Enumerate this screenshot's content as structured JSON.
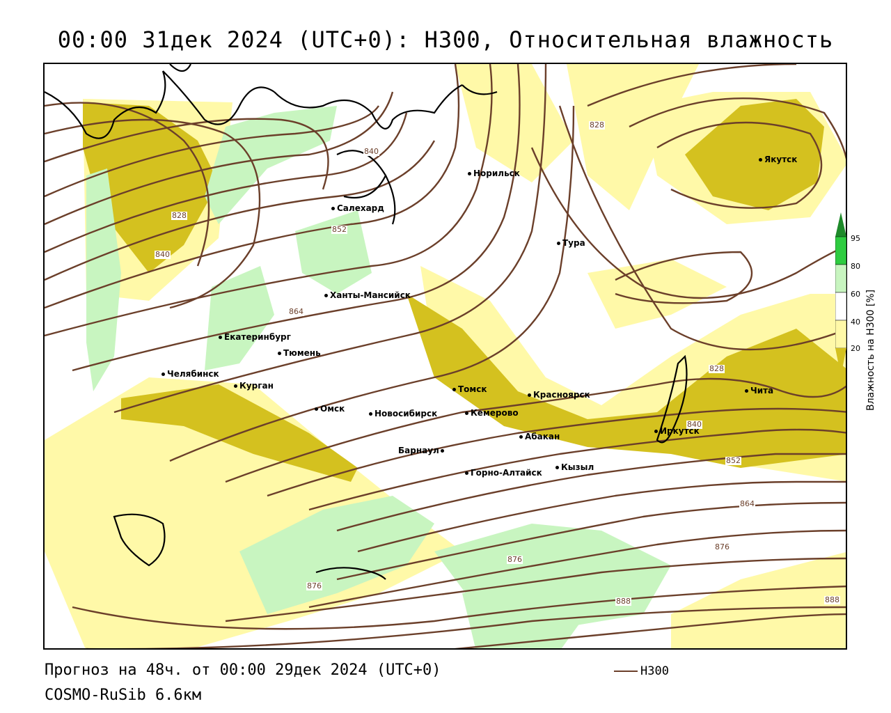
{
  "title": "00:00 31дек 2024 (UTC+0): H300, Относительная влажность",
  "footer": {
    "forecast": "Прогноз на 48ч. от 00:00 29дек 2024 (UTC+0)",
    "model": "COSMO-RuSib 6.6км",
    "legend_label": "H300"
  },
  "colorbar": {
    "label": "Влажность на H300 [%]",
    "ticks": [
      "95",
      "80",
      "60",
      "40",
      "20"
    ],
    "colors": {
      "lt20": "#d4c11f",
      "20_40": "#fff9a8",
      "40_60": "#ffffff",
      "60_80": "#c8f5c0",
      "80_95": "#2ecc40",
      "gt95": "#1e8a2a"
    }
  },
  "colors": {
    "contour": "#6b3f2a",
    "coast": "#000000",
    "dry_strong": "#d4c11f",
    "dry_light": "#fff9a8",
    "moist": "#c8f5c0"
  },
  "cities": [
    {
      "name": "Салехард"
    },
    {
      "name": "Норильск"
    },
    {
      "name": "Якутск"
    },
    {
      "name": "Тура"
    },
    {
      "name": "Ханты-Мансийск"
    },
    {
      "name": "Екатеринбург"
    },
    {
      "name": "Тюмень"
    },
    {
      "name": "Челябинск"
    },
    {
      "name": "Курган"
    },
    {
      "name": "Омск"
    },
    {
      "name": "Новосибирск"
    },
    {
      "name": "Томск"
    },
    {
      "name": "Кемерово"
    },
    {
      "name": "Красноярск"
    },
    {
      "name": "Абакан"
    },
    {
      "name": "Барнаул"
    },
    {
      "name": "Горно-Алтайск"
    },
    {
      "name": "Кызыл"
    },
    {
      "name": "Иркутск"
    },
    {
      "name": "Чита"
    }
  ],
  "contour_labels": [
    "840",
    "828",
    "840",
    "852",
    "864",
    "828",
    "828",
    "840",
    "852",
    "864",
    "876",
    "876",
    "876",
    "888",
    "888"
  ]
}
